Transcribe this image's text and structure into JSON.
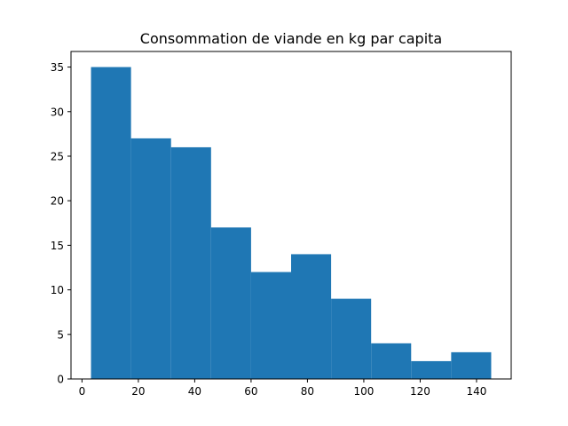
{
  "chart_data": {
    "type": "bar",
    "title": "Consommation de viande en kg par capita",
    "xlabel": "",
    "ylabel": "",
    "bins": [
      {
        "x0": 3.2,
        "x1": 17.4,
        "count": 35
      },
      {
        "x0": 17.4,
        "x1": 31.6,
        "count": 27
      },
      {
        "x0": 31.6,
        "x1": 45.8,
        "count": 26
      },
      {
        "x0": 45.8,
        "x1": 60.0,
        "count": 17
      },
      {
        "x0": 60.0,
        "x1": 74.2,
        "count": 12
      },
      {
        "x0": 74.2,
        "x1": 88.4,
        "count": 14
      },
      {
        "x0": 88.4,
        "x1": 102.6,
        "count": 9
      },
      {
        "x0": 102.6,
        "x1": 116.8,
        "count": 4
      },
      {
        "x0": 116.8,
        "x1": 131.0,
        "count": 2
      },
      {
        "x0": 131.0,
        "x1": 145.2,
        "count": 3
      }
    ],
    "xlim": [
      -3.9,
      152.3
    ],
    "ylim": [
      0,
      36.75
    ],
    "xticks": [
      "0",
      "20",
      "40",
      "60",
      "80",
      "100",
      "120",
      "140"
    ],
    "yticks": [
      "0",
      "5",
      "10",
      "15",
      "20",
      "25",
      "30",
      "35"
    ],
    "grid": false,
    "legend": "none",
    "bar_color": "#1f77b4"
  }
}
